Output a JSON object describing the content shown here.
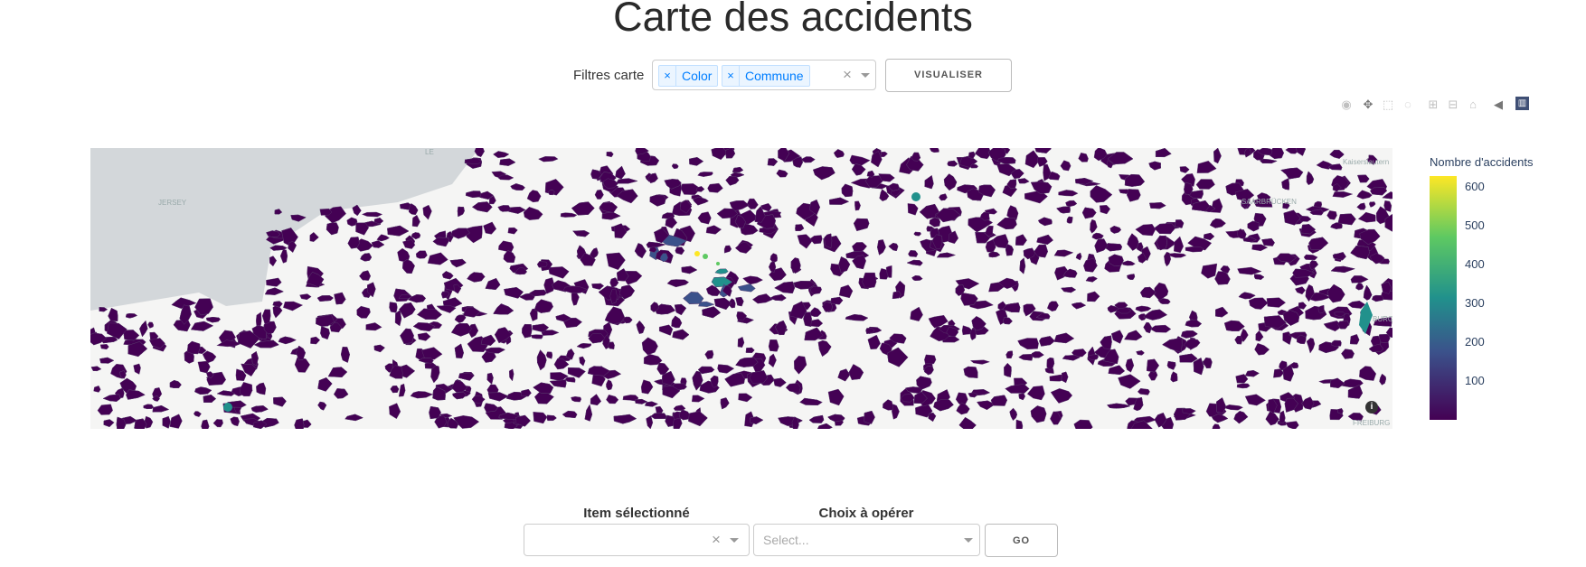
{
  "page": {
    "title": "Carte des accidents"
  },
  "filters": {
    "label": "Filtres carte",
    "tags": [
      "Color",
      "Commune"
    ],
    "tag_remove_glyph": "×",
    "clear_glyph": "×",
    "visualize_button": "VISUALISER"
  },
  "toolbar": {
    "icons": [
      "camera-icon",
      "pan-icon",
      "box-select-icon",
      "lasso-icon",
      "zoom-in-icon",
      "zoom-out-icon",
      "home-icon",
      "tag-icon",
      "plotly-logo-icon"
    ]
  },
  "map": {
    "labels": {
      "jersey": "JERSEY",
      "saarbrucken": "SAARBRÜCKEN",
      "kaiserslautern": "Kaiserslautern",
      "freiburg": "FREIBURG",
      "burg": "BURG",
      "le": "LE"
    },
    "info_glyph": "i",
    "colors": {
      "land": "#f5f5f4",
      "sea": "#d3d7da",
      "low": "#440154",
      "mid": "#3b528b",
      "teal": "#21918c",
      "green": "#5ec962",
      "high": "#fde725"
    }
  },
  "colorbar": {
    "title": "Nombre d'accidents",
    "ticks": [
      "600",
      "500",
      "400",
      "300",
      "200",
      "100"
    ],
    "range": [
      0,
      630
    ]
  },
  "controls": {
    "item_label": "Item sélectionné",
    "item_clear_glyph": "×",
    "choice_label": "Choix à opérer",
    "choice_placeholder": "Select...",
    "go_button": "GO"
  }
}
